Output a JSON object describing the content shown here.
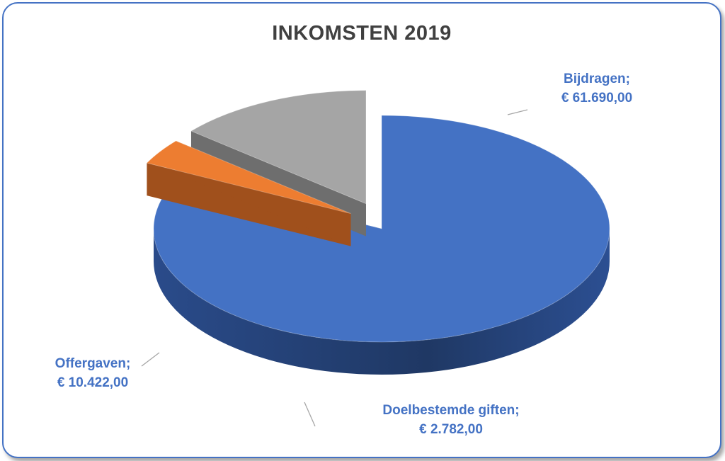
{
  "chart_data": {
    "type": "pie",
    "title": "INKOMSTEN 2019",
    "slices": [
      {
        "label": "Bijdragen;",
        "value_text": "€ 61.690,00",
        "value": 61690.0,
        "color": "#4472c4",
        "side": "#1f3864",
        "exploded": false
      },
      {
        "label": "Doelbestemde giften;",
        "value_text": "€ 2.782,00",
        "value": 2782.0,
        "color": "#ed7d31",
        "side": "#a0501c",
        "exploded": true
      },
      {
        "label": "Offergaven;",
        "value_text": "€ 10.422,00",
        "value": 10422.0,
        "color": "#a5a5a5",
        "side": "#6e6e6e",
        "exploded": true
      }
    ],
    "label_color": "#4472c4",
    "legend": "none",
    "style": "3d-exploded"
  }
}
